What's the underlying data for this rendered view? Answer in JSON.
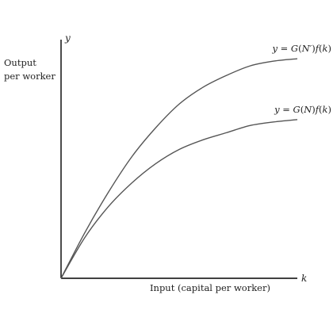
{
  "chart_data": {
    "type": "line",
    "title": "",
    "ylabel_side": [
      "Output",
      "per worker"
    ],
    "y_axis_symbol": "y",
    "x_axis_symbol": "k",
    "xlabel": "Input (capital per worker)",
    "xlim": [
      0,
      1
    ],
    "ylim": [
      0,
      1
    ],
    "grid": false,
    "series": [
      {
        "name": "y = G(N′)f(k)",
        "label_parts": [
          "y",
          " = ",
          "G",
          "(",
          "N′",
          ")",
          "f",
          "(",
          "k",
          ")"
        ],
        "x": [
          0,
          0.1,
          0.2,
          0.3,
          0.4,
          0.5,
          0.6,
          0.7,
          0.8,
          0.9,
          1.0
        ],
        "values": [
          0,
          0.19,
          0.36,
          0.51,
          0.63,
          0.73,
          0.8,
          0.85,
          0.89,
          0.91,
          0.92
        ]
      },
      {
        "name": "y = G(N)f(k)",
        "label_parts": [
          "y",
          " = ",
          "G",
          "(",
          "N",
          ")",
          "f",
          "(",
          "k",
          ")"
        ],
        "x": [
          0,
          0.1,
          0.2,
          0.3,
          0.4,
          0.5,
          0.6,
          0.7,
          0.8,
          0.9,
          1.0
        ],
        "values": [
          0,
          0.17,
          0.3,
          0.4,
          0.48,
          0.54,
          0.58,
          0.61,
          0.64,
          0.655,
          0.665
        ]
      }
    ]
  }
}
